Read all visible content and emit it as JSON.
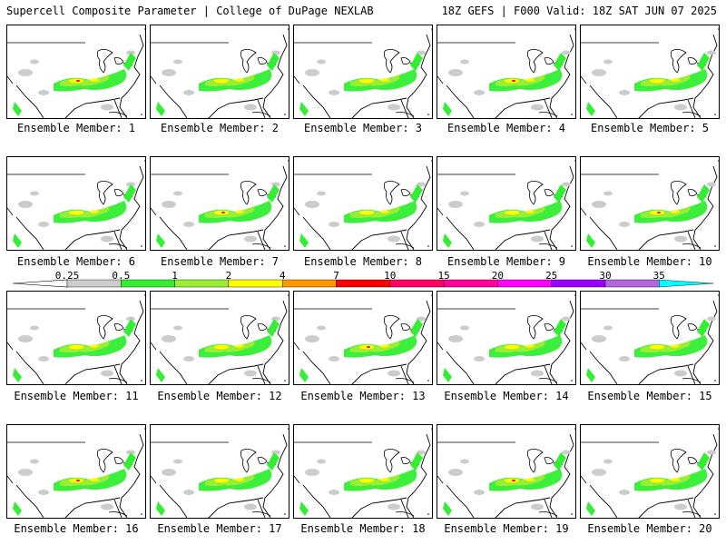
{
  "header": {
    "left": "Supercell Composite Parameter | College of DuPage NEXLAB",
    "right": "18Z GEFS | F000 Valid: 18Z SAT JUN 07 2025"
  },
  "legend": {
    "tick_labels": [
      "0.25",
      "0.5",
      "1",
      "2",
      "4",
      "7",
      "10",
      "15",
      "20",
      "25",
      "30",
      "35"
    ],
    "colors": [
      "#cccccc",
      "#33ee33",
      "#99ee33",
      "#ffff00",
      "#ff9900",
      "#ff0000",
      "#ff0066",
      "#ff0099",
      "#ff00ff",
      "#9900ff",
      "#b366dd",
      "#00ffff"
    ]
  },
  "members": [
    {
      "label": "Ensemble Member: 1"
    },
    {
      "label": "Ensemble Member: 2"
    },
    {
      "label": "Ensemble Member: 3"
    },
    {
      "label": "Ensemble Member: 4"
    },
    {
      "label": "Ensemble Member: 5"
    },
    {
      "label": "Ensemble Member: 6"
    },
    {
      "label": "Ensemble Member: 7"
    },
    {
      "label": "Ensemble Member: 8"
    },
    {
      "label": "Ensemble Member: 9"
    },
    {
      "label": "Ensemble Member: 10"
    },
    {
      "label": "Ensemble Member: 11"
    },
    {
      "label": "Ensemble Member: 12"
    },
    {
      "label": "Ensemble Member: 13"
    },
    {
      "label": "Ensemble Member: 14"
    },
    {
      "label": "Ensemble Member: 15"
    },
    {
      "label": "Ensemble Member: 16"
    },
    {
      "label": "Ensemble Member: 17"
    },
    {
      "label": "Ensemble Member: 18"
    },
    {
      "label": "Ensemble Member: 19"
    },
    {
      "label": "Ensemble Member: 20"
    }
  ]
}
